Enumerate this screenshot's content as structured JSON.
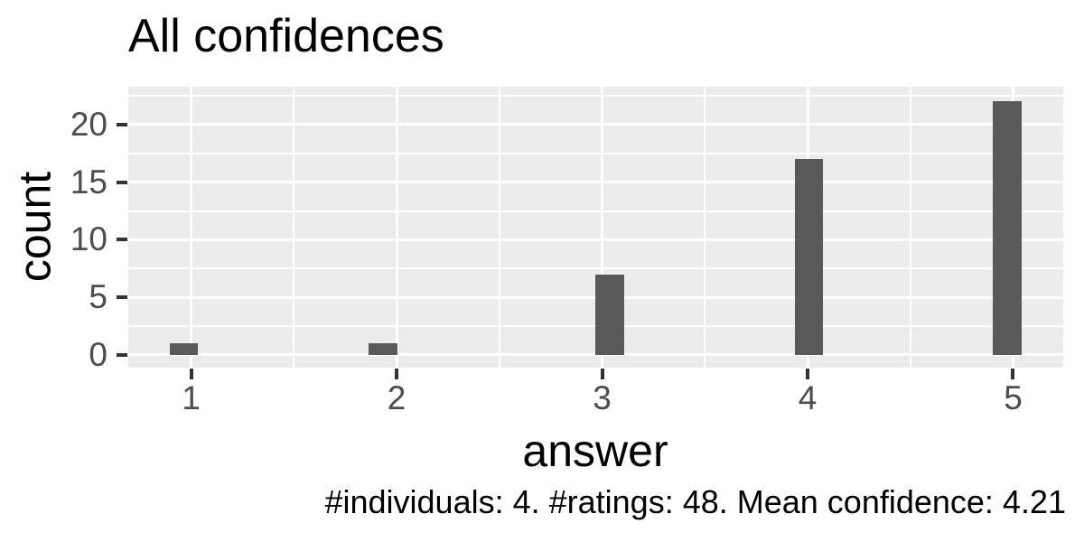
{
  "chart_data": {
    "type": "bar",
    "subtype": "histogram",
    "title": "All confidences",
    "xlabel": "answer",
    "ylabel": "count",
    "caption": "#individuals: 4. #ratings: 48. Mean confidence: 4.21",
    "categories": [
      1,
      2,
      3,
      4,
      5
    ],
    "values": [
      1,
      1,
      7,
      17,
      22
    ],
    "bar_centers": [
      0.964,
      1.934,
      3.037,
      4.007,
      4.971
    ],
    "bar_width_units": 0.138,
    "x_ticks": [
      1,
      2,
      3,
      4,
      5
    ],
    "y_ticks": [
      0,
      5,
      10,
      15,
      20
    ],
    "x_minor_gridlines": [
      1.5,
      2.5,
      3.5,
      4.5
    ],
    "y_minor_gridlines": [
      2.5,
      7.5,
      12.5,
      17.5,
      22.5
    ],
    "xlim": [
      0.694,
      5.244
    ],
    "ylim": [
      -1.1,
      23.29
    ],
    "grid": true,
    "legend": "none",
    "colors": {
      "panel_bg": "#EBEBEB",
      "bar": "#595959",
      "grid": "#FFFFFF",
      "tick_mark": "#333333",
      "tick_label": "#4D4D4D",
      "text": "#000000",
      "background": "#FFFFFF"
    }
  }
}
